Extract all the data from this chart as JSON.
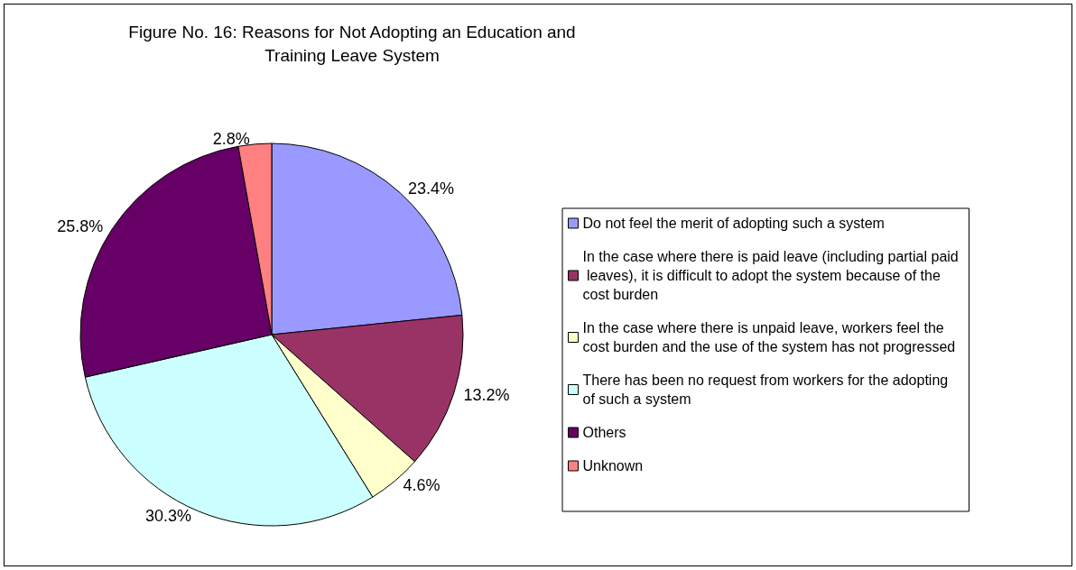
{
  "chart_data": {
    "type": "pie",
    "title": "Figure No. 16: Reasons for Not Adopting an Education and\nTraining Leave System",
    "categories": [
      "Do not feel the merit of adopting such a system",
      "In the case where there is paid leave (including partial paid leaves), it is difficult to adopt the system because of the cost burden",
      "In the case where there is unpaid leave, workers feel the cost burden and the use of the system has not progressed",
      "There has been no request from workers for the adopting of such a system",
      "Others",
      "Unknown"
    ],
    "values": [
      23.4,
      13.2,
      4.6,
      30.3,
      25.8,
      2.8
    ],
    "colors": [
      "#9999ff",
      "#993366",
      "#ffffcc",
      "#ccffff",
      "#660066",
      "#ff8080"
    ],
    "value_labels": [
      "23.4%",
      "13.2%",
      "4.6%",
      "30.3%",
      "25.8%",
      "2.8%"
    ],
    "legend": "right"
  }
}
